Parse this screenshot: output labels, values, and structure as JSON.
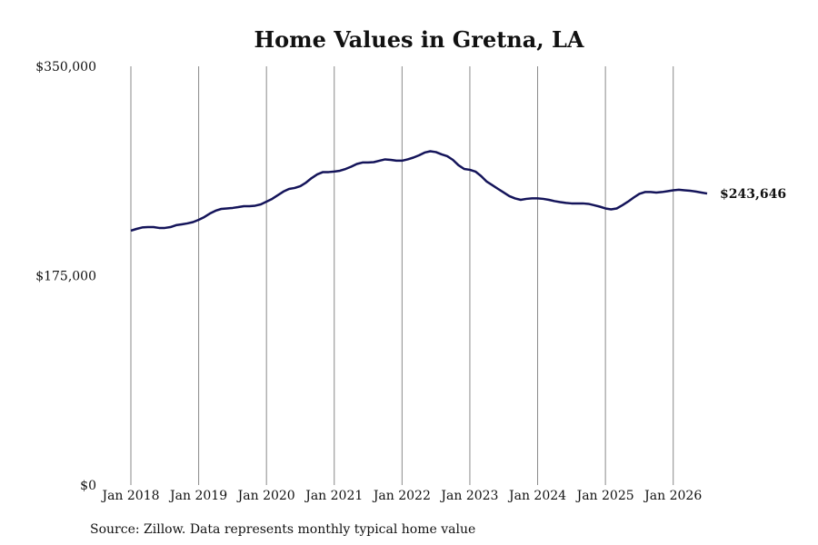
{
  "chart_data": {
    "type": "line",
    "title": "Home Values in Gretna, LA",
    "source": "Source: Zillow. Data represents monthly typical home value",
    "x": [
      "2018-01",
      "2018-02",
      "2018-03",
      "2018-04",
      "2018-05",
      "2018-06",
      "2018-07",
      "2018-08",
      "2018-09",
      "2018-10",
      "2018-11",
      "2018-12",
      "2019-01",
      "2019-02",
      "2019-03",
      "2019-04",
      "2019-05",
      "2019-06",
      "2019-07",
      "2019-08",
      "2019-09",
      "2019-10",
      "2019-11",
      "2019-12",
      "2020-01",
      "2020-02",
      "2020-03",
      "2020-04",
      "2020-05",
      "2020-06",
      "2020-07",
      "2020-08",
      "2020-09",
      "2020-10",
      "2020-11",
      "2020-12",
      "2021-01",
      "2021-02",
      "2021-03",
      "2021-04",
      "2021-05",
      "2021-06",
      "2021-07",
      "2021-08",
      "2021-09",
      "2021-10",
      "2021-11",
      "2021-12",
      "2022-01",
      "2022-02",
      "2022-03",
      "2022-04",
      "2022-05",
      "2022-06",
      "2022-07",
      "2022-08",
      "2022-09",
      "2022-10",
      "2022-11",
      "2022-12",
      "2023-01",
      "2023-02",
      "2023-03",
      "2023-04",
      "2023-05",
      "2023-06",
      "2023-07",
      "2023-08",
      "2023-09",
      "2023-10",
      "2023-11",
      "2023-12",
      "2024-01",
      "2024-02",
      "2024-03",
      "2024-04",
      "2024-05",
      "2024-06",
      "2024-07",
      "2024-08",
      "2024-09",
      "2024-10",
      "2024-11",
      "2024-12",
      "2025-01",
      "2025-02",
      "2025-03",
      "2025-04",
      "2025-05",
      "2025-06",
      "2025-07",
      "2025-08",
      "2025-09",
      "2025-10",
      "2025-11",
      "2025-12",
      "2026-01",
      "2026-02",
      "2026-03",
      "2026-04",
      "2026-05",
      "2026-06",
      "2026-07"
    ],
    "series": [
      {
        "name": "Home value",
        "color": "#14145a",
        "values": [
          212600,
          214100,
          215300,
          215600,
          215600,
          214900,
          214900,
          215600,
          217200,
          217900,
          218700,
          219800,
          221700,
          224000,
          227000,
          229300,
          230800,
          231200,
          231600,
          232300,
          233100,
          233100,
          233500,
          234600,
          236900,
          239200,
          242200,
          245300,
          247500,
          248300,
          249800,
          252800,
          256600,
          259700,
          261600,
          261600,
          262000,
          262700,
          264200,
          266100,
          268400,
          269600,
          269600,
          269900,
          271100,
          272200,
          271800,
          271100,
          271100,
          272200,
          273700,
          275600,
          277900,
          279000,
          278300,
          276400,
          274900,
          271800,
          267300,
          264200,
          263500,
          262000,
          258200,
          253600,
          250600,
          247500,
          244500,
          241500,
          239600,
          238400,
          239200,
          239600,
          239600,
          239200,
          238400,
          237300,
          236500,
          235800,
          235400,
          235400,
          235400,
          235000,
          233900,
          232700,
          231200,
          230400,
          231200,
          233900,
          236900,
          240300,
          243400,
          244900,
          244900,
          244500,
          244900,
          245600,
          246400,
          246800,
          246400,
          246000,
          245300,
          244500,
          243646
        ]
      }
    ],
    "annotations": [
      {
        "x": "2026-07",
        "value": 243646,
        "label": "$243,646"
      }
    ],
    "xlim": [
      "2018-01",
      "2026-07"
    ],
    "xticks": [
      {
        "value": "2018-01",
        "label": "Jan 2018"
      },
      {
        "value": "2019-01",
        "label": "Jan 2019"
      },
      {
        "value": "2020-01",
        "label": "Jan 2020"
      },
      {
        "value": "2021-01",
        "label": "Jan 2021"
      },
      {
        "value": "2022-01",
        "label": "Jan 2022"
      },
      {
        "value": "2023-01",
        "label": "Jan 2023"
      },
      {
        "value": "2024-01",
        "label": "Jan 2024"
      },
      {
        "value": "2025-01",
        "label": "Jan 2025"
      },
      {
        "value": "2026-01",
        "label": "Jan 2026"
      }
    ],
    "ylim": [
      0,
      350000
    ],
    "yticks": [
      {
        "value": 0,
        "label": "$0"
      },
      {
        "value": 175000,
        "label": "$175,000"
      },
      {
        "value": 350000,
        "label": "$350,000"
      }
    ],
    "grid": "x"
  }
}
